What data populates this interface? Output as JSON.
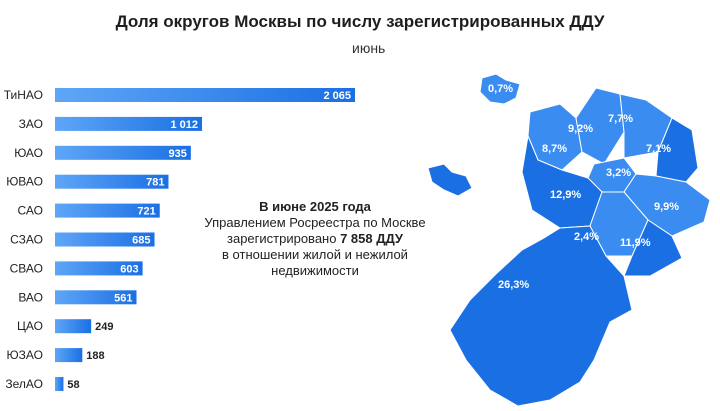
{
  "title": "Доля округов Москвы по числу зарегистрированных ДДУ",
  "subtitle": "июнь",
  "note": {
    "line1": "В июне 2025 года",
    "line2": "Управлением Росреестра по Москве",
    "line3_pre": "зарегистрировано ",
    "line3_bold": "7 858 ДДУ",
    "line4": "в отношении жилой и нежилой",
    "line5": "недвижимости"
  },
  "colors": {
    "bar_start": "#5ea6f7",
    "bar_end": "#1a6fe3",
    "map_light": "#3a8cf0",
    "map_dark": "#1667d8"
  },
  "chart_data": [
    {
      "type": "bar",
      "orientation": "horizontal",
      "categories": [
        "ТиНАО",
        "ЗАО",
        "ЮАО",
        "ЮВАО",
        "САО",
        "СЗАО",
        "СВАО",
        "ВАО",
        "ЦАО",
        "ЮЗАО",
        "ЗелАО"
      ],
      "values": [
        2065,
        1012,
        935,
        781,
        721,
        685,
        603,
        561,
        249,
        188,
        58
      ],
      "value_labels": [
        "2 065",
        "1 012",
        "935",
        "781",
        "721",
        "685",
        "603",
        "561",
        "249",
        "188",
        "58"
      ]
    },
    {
      "type": "choropleth-map",
      "labels": [
        "0,7%",
        "9,2%",
        "7,7%",
        "8,7%",
        "7,1%",
        "3,2%",
        "12,9%",
        "9,9%",
        "2,4%",
        "11,9%",
        "26,3%"
      ]
    }
  ]
}
